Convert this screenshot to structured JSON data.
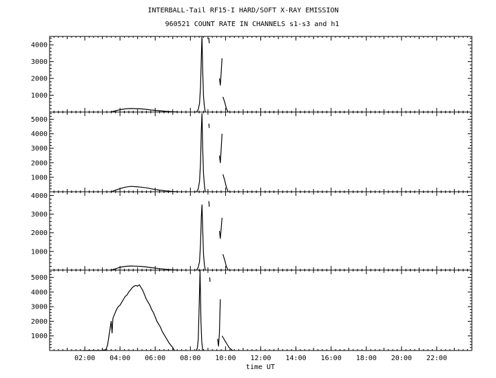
{
  "chart_data": {
    "type": "line",
    "title_line1": "INTERBALL-Tail RF15-I HARD/SOFT X-RAY EMISSION",
    "title_line2": "960521  COUNT RATE IN CHANNELS s1-s3 and h1",
    "xlabel": "time UT",
    "xlim": [
      0,
      24
    ],
    "x_ticks": [
      {
        "hour": 2,
        "label": "02:00"
      },
      {
        "hour": 4,
        "label": "04:00"
      },
      {
        "hour": 6,
        "label": "06:00"
      },
      {
        "hour": 8,
        "label": "08:00"
      },
      {
        "hour": 10,
        "label": "10:00"
      },
      {
        "hour": 12,
        "label": "12:00"
      },
      {
        "hour": 14,
        "label": "14:00"
      },
      {
        "hour": 16,
        "label": "16:00"
      },
      {
        "hour": 18,
        "label": "18:00"
      },
      {
        "hour": 20,
        "label": "20:00"
      },
      {
        "hour": 22,
        "label": "22:00"
      }
    ],
    "panels": [
      {
        "channel": "s1",
        "ylim": [
          0,
          4500
        ],
        "y_ticks": [
          1000,
          2000,
          3000,
          4000
        ],
        "y_tick_labels": [
          "1000",
          "2000",
          "3000",
          "4000"
        ],
        "segments": [
          [
            [
              3.5,
              0
            ],
            [
              3.7,
              60
            ],
            [
              4.0,
              140
            ],
            [
              4.3,
              190
            ],
            [
              4.6,
              210
            ],
            [
              4.9,
              200
            ],
            [
              5.2,
              190
            ],
            [
              5.5,
              160
            ],
            [
              5.8,
              120
            ],
            [
              6.2,
              80
            ],
            [
              6.6,
              40
            ],
            [
              7.0,
              15
            ],
            [
              7.3,
              0
            ]
          ],
          [
            [
              8.35,
              0
            ],
            [
              8.45,
              150
            ],
            [
              8.52,
              500
            ],
            [
              8.58,
              1500
            ],
            [
              8.62,
              3200
            ],
            [
              8.66,
              4500
            ],
            [
              8.7,
              2500
            ],
            [
              8.75,
              900
            ],
            [
              8.8,
              300
            ],
            [
              8.85,
              0
            ]
          ],
          [
            [
              9.05,
              4400
            ],
            [
              9.07,
              4100
            ]
          ],
          [
            [
              9.65,
              2000
            ],
            [
              9.7,
              1600
            ],
            [
              9.75,
              2300
            ],
            [
              9.8,
              3200
            ]
          ],
          [
            [
              9.85,
              900
            ],
            [
              9.95,
              600
            ],
            [
              10.05,
              200
            ],
            [
              10.15,
              0
            ]
          ]
        ]
      },
      {
        "channel": "s2",
        "ylim": [
          0,
          5500
        ],
        "y_ticks": [
          1000,
          2000,
          3000,
          4000,
          5000
        ],
        "y_tick_labels": [
          "1000",
          "2000",
          "3000",
          "4000",
          "5000"
        ],
        "segments": [
          [
            [
              3.5,
              0
            ],
            [
              3.7,
              90
            ],
            [
              4.0,
              220
            ],
            [
              4.3,
              320
            ],
            [
              4.6,
              370
            ],
            [
              4.9,
              350
            ],
            [
              5.2,
              320
            ],
            [
              5.5,
              270
            ],
            [
              5.8,
              200
            ],
            [
              6.2,
              120
            ],
            [
              6.6,
              60
            ],
            [
              7.0,
              20
            ],
            [
              7.3,
              0
            ]
          ],
          [
            [
              8.35,
              0
            ],
            [
              8.45,
              200
            ],
            [
              8.52,
              700
            ],
            [
              8.58,
              2000
            ],
            [
              8.62,
              4200
            ],
            [
              8.66,
              5400
            ],
            [
              8.7,
              3000
            ],
            [
              8.75,
              1200
            ],
            [
              8.8,
              400
            ],
            [
              8.85,
              0
            ]
          ],
          [
            [
              9.05,
              4700
            ],
            [
              9.07,
              4400
            ]
          ],
          [
            [
              9.65,
              2500
            ],
            [
              9.7,
              2000
            ],
            [
              9.75,
              2900
            ],
            [
              9.8,
              4000
            ]
          ],
          [
            [
              9.85,
              1200
            ],
            [
              9.95,
              800
            ],
            [
              10.05,
              300
            ],
            [
              10.15,
              0
            ]
          ]
        ]
      },
      {
        "channel": "s3",
        "ylim": [
          0,
          4200
        ],
        "y_ticks": [
          1000,
          2000,
          3000,
          4000
        ],
        "y_tick_labels": [
          "1000",
          "2000",
          "3000",
          "4000"
        ],
        "segments": [
          [
            [
              3.5,
              0
            ],
            [
              3.7,
              60
            ],
            [
              4.0,
              150
            ],
            [
              4.3,
              200
            ],
            [
              4.6,
              220
            ],
            [
              4.9,
              210
            ],
            [
              5.2,
              200
            ],
            [
              5.5,
              170
            ],
            [
              5.8,
              130
            ],
            [
              6.2,
              85
            ],
            [
              6.6,
              45
            ],
            [
              7.0,
              15
            ],
            [
              7.3,
              0
            ]
          ],
          [
            [
              8.35,
              0
            ],
            [
              8.45,
              150
            ],
            [
              8.52,
              450
            ],
            [
              8.58,
              1400
            ],
            [
              8.62,
              2800
            ],
            [
              8.66,
              3500
            ],
            [
              8.7,
              2200
            ],
            [
              8.75,
              800
            ],
            [
              8.8,
              250
            ],
            [
              8.85,
              0
            ]
          ],
          [
            [
              9.05,
              3700
            ],
            [
              9.07,
              3400
            ]
          ],
          [
            [
              9.65,
              2100
            ],
            [
              9.7,
              1700
            ],
            [
              9.75,
              2200
            ],
            [
              9.8,
              2800
            ]
          ],
          [
            [
              9.85,
              850
            ],
            [
              9.95,
              550
            ],
            [
              10.05,
              180
            ],
            [
              10.15,
              0
            ]
          ]
        ]
      },
      {
        "channel": "h1",
        "ylim": [
          0,
          5500
        ],
        "y_ticks": [
          1000,
          2000,
          3000,
          4000,
          5000
        ],
        "y_tick_labels": [
          "1000",
          "2000",
          "3000",
          "4000",
          "5000"
        ],
        "segments": [
          [
            [
              1.9,
              0
            ],
            [
              2.9,
              0
            ],
            [
              3.2,
              50
            ],
            [
              3.3,
              400
            ],
            [
              3.4,
              1200
            ],
            [
              3.5,
              2000
            ],
            [
              3.55,
              1200
            ],
            [
              3.6,
              2200
            ],
            [
              3.7,
              2500
            ],
            [
              3.8,
              2800
            ],
            [
              3.9,
              3000
            ],
            [
              4.0,
              3100
            ],
            [
              4.1,
              3300
            ],
            [
              4.2,
              3500
            ],
            [
              4.3,
              3700
            ],
            [
              4.4,
              3800
            ],
            [
              4.5,
              4000
            ],
            [
              4.6,
              4150
            ],
            [
              4.7,
              4300
            ],
            [
              4.8,
              4400
            ],
            [
              4.9,
              4450
            ],
            [
              5.0,
              4400
            ],
            [
              5.1,
              4500
            ],
            [
              5.2,
              4300
            ],
            [
              5.3,
              4100
            ],
            [
              5.4,
              3800
            ],
            [
              5.5,
              3500
            ],
            [
              5.6,
              3300
            ],
            [
              5.7,
              3100
            ],
            [
              5.8,
              2800
            ],
            [
              5.9,
              2600
            ],
            [
              6.0,
              2300
            ],
            [
              6.1,
              2000
            ],
            [
              6.2,
              1800
            ],
            [
              6.3,
              1600
            ],
            [
              6.4,
              1300
            ],
            [
              6.5,
              1100
            ],
            [
              6.6,
              900
            ],
            [
              6.7,
              700
            ],
            [
              6.8,
              500
            ],
            [
              6.9,
              350
            ],
            [
              7.0,
              200
            ],
            [
              7.1,
              0
            ]
          ],
          [
            [
              8.35,
              0
            ],
            [
              8.4,
              200
            ],
            [
              8.45,
              800
            ],
            [
              8.5,
              3000
            ],
            [
              8.55,
              5500
            ],
            [
              8.6,
              2000
            ],
            [
              8.65,
              600
            ],
            [
              8.7,
              0
            ]
          ],
          [
            [
              9.1,
              5000
            ],
            [
              9.12,
              4700
            ]
          ],
          [
            [
              9.55,
              800
            ],
            [
              9.6,
              300
            ],
            [
              9.65,
              1200
            ],
            [
              9.7,
              3500
            ]
          ],
          [
            [
              9.8,
              1000
            ],
            [
              9.9,
              800
            ],
            [
              10.0,
              600
            ],
            [
              10.1,
              400
            ],
            [
              10.2,
              200
            ],
            [
              10.3,
              100
            ],
            [
              10.4,
              0
            ]
          ]
        ]
      }
    ]
  }
}
